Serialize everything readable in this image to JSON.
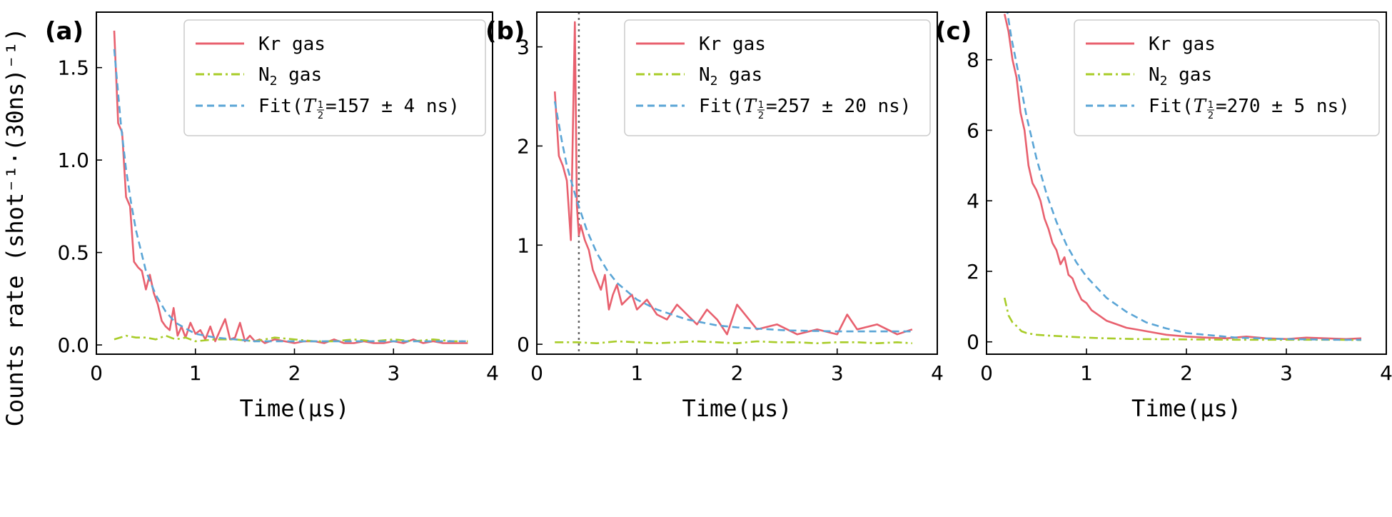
{
  "colors": {
    "kr": "#e8606e",
    "n2": "#a8cc28",
    "fit": "#5aa5d6",
    "vline": "#666666"
  },
  "y_axis_title": "Counts rate (shot⁻¹·(30ns)⁻¹)",
  "chart_data": [
    {
      "type": "line",
      "panel_label": "(a)",
      "xlabel": "Time(μs)",
      "xlim": [
        0,
        4
      ],
      "ylim": [
        -0.05,
        1.8
      ],
      "xticks": [
        0,
        1,
        2,
        3,
        4
      ],
      "yticks": [
        0.0,
        0.5,
        1.0,
        1.5
      ],
      "ytick_labels": [
        "0.0",
        "0.5",
        "1.0",
        "1.5"
      ],
      "legend_placement": "top-right",
      "legend": {
        "kr": "Kr gas",
        "n2_main": "N",
        "n2_sub": "2",
        "n2_rest": " gas",
        "fit_prefix": "Fit(",
        "fit_T": "T",
        "fit_frac_num": "1",
        "fit_frac_den": "2",
        "fit_rest": "=157 ± 4 ns)"
      },
      "series": [
        {
          "name": "Kr gas",
          "style": "solid",
          "x": [
            0.18,
            0.22,
            0.26,
            0.3,
            0.34,
            0.38,
            0.42,
            0.46,
            0.5,
            0.54,
            0.58,
            0.62,
            0.66,
            0.7,
            0.74,
            0.78,
            0.82,
            0.86,
            0.9,
            0.95,
            1.0,
            1.05,
            1.1,
            1.15,
            1.2,
            1.25,
            1.3,
            1.35,
            1.4,
            1.45,
            1.5,
            1.55,
            1.6,
            1.65,
            1.7,
            1.8,
            1.9,
            2.0,
            2.1,
            2.2,
            2.3,
            2.4,
            2.5,
            2.6,
            2.7,
            2.8,
            2.9,
            3.0,
            3.1,
            3.2,
            3.3,
            3.4,
            3.5,
            3.6,
            3.75
          ],
          "y": [
            1.7,
            1.2,
            1.15,
            0.8,
            0.75,
            0.45,
            0.42,
            0.4,
            0.3,
            0.38,
            0.28,
            0.22,
            0.13,
            0.1,
            0.08,
            0.2,
            0.05,
            0.1,
            0.04,
            0.12,
            0.06,
            0.08,
            0.03,
            0.1,
            0.02,
            0.08,
            0.14,
            0.03,
            0.04,
            0.12,
            0.02,
            0.05,
            0.02,
            0.03,
            0.01,
            0.03,
            0.02,
            0.01,
            0.02,
            0.02,
            0.01,
            0.03,
            0.01,
            0.01,
            0.02,
            0.01,
            0.01,
            0.02,
            0.01,
            0.03,
            0.01,
            0.02,
            0.01,
            0.01,
            0.01
          ]
        },
        {
          "name": "N2 gas",
          "style": "dashdot",
          "x": [
            0.18,
            0.3,
            0.4,
            0.5,
            0.6,
            0.7,
            0.8,
            0.9,
            1.0,
            1.2,
            1.4,
            1.6,
            1.8,
            2.0,
            2.2,
            2.4,
            2.6,
            2.8,
            3.0,
            3.2,
            3.4,
            3.6,
            3.75
          ],
          "y": [
            0.03,
            0.05,
            0.04,
            0.04,
            0.03,
            0.05,
            0.03,
            0.04,
            0.02,
            0.03,
            0.03,
            0.02,
            0.04,
            0.03,
            0.02,
            0.02,
            0.03,
            0.02,
            0.03,
            0.02,
            0.03,
            0.02,
            0.02
          ]
        },
        {
          "name": "Fit",
          "style": "dashed",
          "x": [
            0.18,
            0.25,
            0.3,
            0.35,
            0.4,
            0.5,
            0.6,
            0.7,
            0.8,
            0.9,
            1.0,
            1.2,
            1.4,
            1.6,
            2.0,
            2.5,
            3.0,
            3.5,
            3.75
          ],
          "y": [
            1.6,
            1.18,
            0.95,
            0.77,
            0.62,
            0.4,
            0.27,
            0.18,
            0.12,
            0.09,
            0.06,
            0.04,
            0.03,
            0.02,
            0.02,
            0.02,
            0.02,
            0.02,
            0.02
          ]
        }
      ]
    },
    {
      "type": "line",
      "panel_label": "(b)",
      "xlabel": "Time(μs)",
      "xlim": [
        0,
        4
      ],
      "ylim": [
        -0.1,
        3.35
      ],
      "xticks": [
        0,
        1,
        2,
        3,
        4
      ],
      "yticks": [
        0,
        1,
        2,
        3
      ],
      "ytick_labels": [
        "0",
        "1",
        "2",
        "3"
      ],
      "vline": 0.42,
      "legend_placement": "top-right",
      "legend": {
        "kr": "Kr gas",
        "n2_main": "N",
        "n2_sub": "2",
        "n2_rest": " gas",
        "fit_prefix": "Fit(",
        "fit_T": "T",
        "fit_frac_num": "1",
        "fit_frac_den": "2",
        "fit_rest": "=257 ± 20 ns)"
      },
      "series": [
        {
          "name": "Kr gas",
          "style": "solid",
          "x": [
            0.18,
            0.22,
            0.26,
            0.3,
            0.34,
            0.38,
            0.4,
            0.42,
            0.44,
            0.48,
            0.52,
            0.56,
            0.6,
            0.64,
            0.68,
            0.72,
            0.76,
            0.8,
            0.85,
            0.9,
            0.95,
            1.0,
            1.1,
            1.2,
            1.3,
            1.4,
            1.5,
            1.6,
            1.7,
            1.8,
            1.9,
            2.0,
            2.2,
            2.4,
            2.6,
            2.8,
            3.0,
            3.1,
            3.2,
            3.4,
            3.6,
            3.75
          ],
          "y": [
            2.55,
            1.9,
            1.8,
            1.65,
            1.05,
            3.25,
            1.4,
            1.1,
            1.2,
            1.05,
            0.95,
            0.75,
            0.65,
            0.55,
            0.7,
            0.35,
            0.5,
            0.6,
            0.4,
            0.45,
            0.5,
            0.35,
            0.45,
            0.3,
            0.25,
            0.4,
            0.3,
            0.2,
            0.35,
            0.25,
            0.1,
            0.4,
            0.15,
            0.2,
            0.1,
            0.15,
            0.1,
            0.3,
            0.15,
            0.2,
            0.1,
            0.15
          ]
        },
        {
          "name": "N2 gas",
          "style": "dashdot",
          "x": [
            0.18,
            0.4,
            0.6,
            0.8,
            1.0,
            1.2,
            1.4,
            1.6,
            1.8,
            2.0,
            2.2,
            2.4,
            2.6,
            2.8,
            3.0,
            3.2,
            3.4,
            3.6,
            3.75
          ],
          "y": [
            0.02,
            0.02,
            0.01,
            0.03,
            0.02,
            0.01,
            0.02,
            0.03,
            0.02,
            0.01,
            0.03,
            0.02,
            0.02,
            0.01,
            0.02,
            0.02,
            0.01,
            0.02,
            0.01
          ]
        },
        {
          "name": "Fit",
          "style": "dashed",
          "x": [
            0.18,
            0.25,
            0.3,
            0.4,
            0.5,
            0.6,
            0.7,
            0.8,
            1.0,
            1.2,
            1.5,
            1.8,
            2.0,
            2.5,
            3.0,
            3.5,
            3.75
          ],
          "y": [
            2.45,
            2.05,
            1.8,
            1.45,
            1.15,
            0.92,
            0.75,
            0.62,
            0.45,
            0.35,
            0.25,
            0.19,
            0.17,
            0.14,
            0.13,
            0.13,
            0.13
          ]
        }
      ]
    },
    {
      "type": "line",
      "panel_label": "(c)",
      "xlabel": "Time(μs)",
      "xlim": [
        0,
        4
      ],
      "ylim": [
        -0.35,
        9.35
      ],
      "xticks": [
        0,
        1,
        2,
        3,
        4
      ],
      "yticks": [
        0,
        2,
        4,
        6,
        8
      ],
      "ytick_labels": [
        "0",
        "2",
        "4",
        "6",
        "8"
      ],
      "legend_placement": "top-right",
      "legend": {
        "kr": "Kr gas",
        "n2_main": "N",
        "n2_sub": "2",
        "n2_rest": " gas",
        "fit_prefix": "Fit(",
        "fit_T": "T",
        "fit_frac_num": "1",
        "fit_frac_den": "2",
        "fit_rest": "=270 ± 5 ns)"
      },
      "series": [
        {
          "name": "Kr gas",
          "style": "solid",
          "x": [
            0.18,
            0.22,
            0.26,
            0.3,
            0.34,
            0.38,
            0.42,
            0.46,
            0.5,
            0.54,
            0.58,
            0.62,
            0.66,
            0.7,
            0.74,
            0.78,
            0.82,
            0.86,
            0.9,
            0.95,
            1.0,
            1.05,
            1.1,
            1.2,
            1.3,
            1.4,
            1.5,
            1.6,
            1.7,
            1.8,
            2.0,
            2.2,
            2.4,
            2.6,
            2.8,
            3.0,
            3.2,
            3.4,
            3.6,
            3.75
          ],
          "y": [
            9.3,
            8.8,
            8.0,
            7.5,
            6.5,
            6.0,
            5.0,
            4.5,
            4.3,
            4.0,
            3.5,
            3.2,
            2.8,
            2.6,
            2.2,
            2.4,
            1.9,
            1.8,
            1.5,
            1.2,
            1.1,
            0.9,
            0.8,
            0.6,
            0.5,
            0.4,
            0.35,
            0.3,
            0.25,
            0.2,
            0.15,
            0.12,
            0.1,
            0.15,
            0.1,
            0.08,
            0.12,
            0.1,
            0.08,
            0.1
          ]
        },
        {
          "name": "N2 gas",
          "style": "dashdot",
          "x": [
            0.18,
            0.22,
            0.26,
            0.3,
            0.35,
            0.4,
            0.5,
            0.6,
            0.8,
            1.0,
            1.2,
            1.5,
            2.0,
            2.5,
            3.0,
            3.5,
            3.75
          ],
          "y": [
            1.25,
            0.75,
            0.55,
            0.45,
            0.3,
            0.25,
            0.2,
            0.18,
            0.15,
            0.12,
            0.1,
            0.08,
            0.07,
            0.06,
            0.06,
            0.06,
            0.05
          ]
        },
        {
          "name": "Fit",
          "style": "dashed",
          "x": [
            0.2,
            0.25,
            0.3,
            0.4,
            0.5,
            0.6,
            0.7,
            0.8,
            0.9,
            1.0,
            1.2,
            1.4,
            1.6,
            1.8,
            2.0,
            2.5,
            3.0,
            3.5,
            3.75
          ],
          "y": [
            9.5,
            8.6,
            7.9,
            6.4,
            5.2,
            4.2,
            3.4,
            2.75,
            2.25,
            1.85,
            1.25,
            0.85,
            0.55,
            0.38,
            0.25,
            0.12,
            0.08,
            0.06,
            0.06
          ]
        }
      ]
    }
  ]
}
